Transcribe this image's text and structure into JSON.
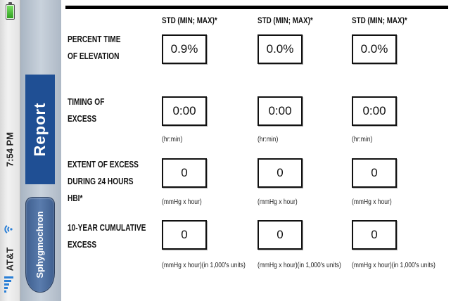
{
  "status_bar": {
    "carrier": "AT&T",
    "time": "7:54 PM",
    "icons": [
      "battery-icon",
      "wifi-icon",
      "signal-bars-icon"
    ]
  },
  "nav": {
    "title": "Report",
    "back_label": "Sphygmochron"
  },
  "columns": [
    "STD (MIN; MAX)*",
    "STD (MIN; MAX)*",
    "STD (MIN; MAX)*"
  ],
  "rows": [
    {
      "label_lines": [
        "PERCENT TIME",
        "OF ELEVATION"
      ],
      "values": [
        "0.9%",
        "0.0%",
        "0.0%"
      ],
      "unit": ""
    },
    {
      "label_lines": [
        "TIMING OF",
        "EXCESS"
      ],
      "values": [
        "0:00",
        "0:00",
        "0:00"
      ],
      "unit": "(hr:min)"
    },
    {
      "label_lines": [
        "EXTENT OF EXCESS",
        "DURING 24 HOURS",
        "HBI*"
      ],
      "values": [
        "0",
        "0",
        "0"
      ],
      "unit": "(mmHg x hour)"
    },
    {
      "label_lines": [
        "10-YEAR CUMULATIVE",
        "EXCESS"
      ],
      "values": [
        "0",
        "0",
        "0"
      ],
      "unit": "(mmHg x hour)(in 1,000's units)"
    }
  ],
  "colors": {
    "nav_title_bg": "#1f4f94",
    "back_button": "#4f6f9f",
    "battery": "#3fbf2f",
    "wifi": "#2a7fd6"
  }
}
